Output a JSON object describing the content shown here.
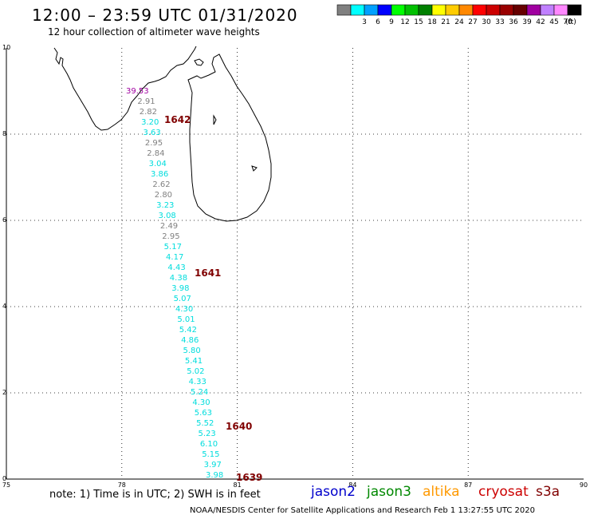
{
  "header": {
    "title": "12:00 – 23:59 UTC 01/31/2020",
    "subtitle": "12 hour collection of altimeter wave heights"
  },
  "legend": {
    "unit_label": "(ft)",
    "swatches": [
      {
        "label": "",
        "color": "#808080"
      },
      {
        "label": "3",
        "color": "#00ffff"
      },
      {
        "label": "6",
        "color": "#00a0ff"
      },
      {
        "label": "9",
        "color": "#0000ff"
      },
      {
        "label": "12",
        "color": "#00ff00"
      },
      {
        "label": "15",
        "color": "#00c000"
      },
      {
        "label": "18",
        "color": "#008000"
      },
      {
        "label": "21",
        "color": "#ffff00"
      },
      {
        "label": "24",
        "color": "#ffcc00"
      },
      {
        "label": "27",
        "color": "#ff8800"
      },
      {
        "label": "30",
        "color": "#ff0000"
      },
      {
        "label": "33",
        "color": "#cc0000"
      },
      {
        "label": "36",
        "color": "#990000"
      },
      {
        "label": "39",
        "color": "#660000"
      },
      {
        "label": "42",
        "color": "#a000a0"
      },
      {
        "label": "45",
        "color": "#c080ff"
      },
      {
        "label": "70",
        "color": "#ff88ff"
      },
      {
        "label": "",
        "color": "#000000"
      }
    ]
  },
  "axes": {
    "lat_ticks": [
      "10",
      "8",
      "6",
      "4",
      "2",
      "0"
    ],
    "lon_ticks": [
      "75",
      "78",
      "81",
      "84",
      "87",
      "90"
    ]
  },
  "track": {
    "times": [
      {
        "label": "1642",
        "color": "#800000"
      },
      {
        "label": "1641",
        "color": "#800000"
      },
      {
        "label": "1640",
        "color": "#800000"
      },
      {
        "label": "1639",
        "color": "#800000"
      }
    ],
    "points": [
      {
        "text": "39.53",
        "color": "#a000a0"
      },
      {
        "text": "2.91",
        "color": "#808080"
      },
      {
        "text": "2.82",
        "color": "#808080"
      },
      {
        "text": "3.20",
        "color": "#00dddd"
      },
      {
        "text": "3.63",
        "color": "#00dddd"
      },
      {
        "text": "2.95",
        "color": "#808080"
      },
      {
        "text": "2.84",
        "color": "#808080"
      },
      {
        "text": "3.04",
        "color": "#00dddd"
      },
      {
        "text": "3.86",
        "color": "#00dddd"
      },
      {
        "text": "2.62",
        "color": "#808080"
      },
      {
        "text": "2.80",
        "color": "#808080"
      },
      {
        "text": "3.23",
        "color": "#00dddd"
      },
      {
        "text": "3.08",
        "color": "#00dddd"
      },
      {
        "text": "2.49",
        "color": "#808080"
      },
      {
        "text": "2.95",
        "color": "#808080"
      },
      {
        "text": "5.17",
        "color": "#00dddd"
      },
      {
        "text": "4.17",
        "color": "#00dddd"
      },
      {
        "text": "4.43",
        "color": "#00dddd"
      },
      {
        "text": "4.38",
        "color": "#00dddd"
      },
      {
        "text": "3.98",
        "color": "#00dddd"
      },
      {
        "text": "5.07",
        "color": "#00dddd"
      },
      {
        "text": "4.30",
        "color": "#00dddd"
      },
      {
        "text": "5.01",
        "color": "#00dddd"
      },
      {
        "text": "5.42",
        "color": "#00dddd"
      },
      {
        "text": "4.86",
        "color": "#00dddd"
      },
      {
        "text": "5.80",
        "color": "#00dddd"
      },
      {
        "text": "5.41",
        "color": "#00dddd"
      },
      {
        "text": "5.02",
        "color": "#00dddd"
      },
      {
        "text": "4.33",
        "color": "#00dddd"
      },
      {
        "text": "5.24",
        "color": "#00dddd"
      },
      {
        "text": "4.30",
        "color": "#00dddd"
      },
      {
        "text": "5.63",
        "color": "#00dddd"
      },
      {
        "text": "5.52",
        "color": "#00dddd"
      },
      {
        "text": "5.23",
        "color": "#00dddd"
      },
      {
        "text": "6.10",
        "color": "#00dddd"
      },
      {
        "text": "5.15",
        "color": "#00dddd"
      },
      {
        "text": "3.97",
        "color": "#00dddd"
      },
      {
        "text": "3.98",
        "color": "#00dddd"
      }
    ]
  },
  "footer": {
    "note": "note:  1) Time is in UTC;  2) SWH is in feet",
    "credit": "NOAA/NESDIS Center for Satellite Applications and Research    Feb  1 13:27:55 UTC 2020",
    "satellites": [
      {
        "name": "jason2",
        "color": "#0000cc"
      },
      {
        "name": "jason3",
        "color": "#008800"
      },
      {
        "name": "altika",
        "color": "#ff9900"
      },
      {
        "name": "cryosat",
        "color": "#cc0000"
      },
      {
        "name": "s3a",
        "color": "#800000"
      }
    ]
  }
}
